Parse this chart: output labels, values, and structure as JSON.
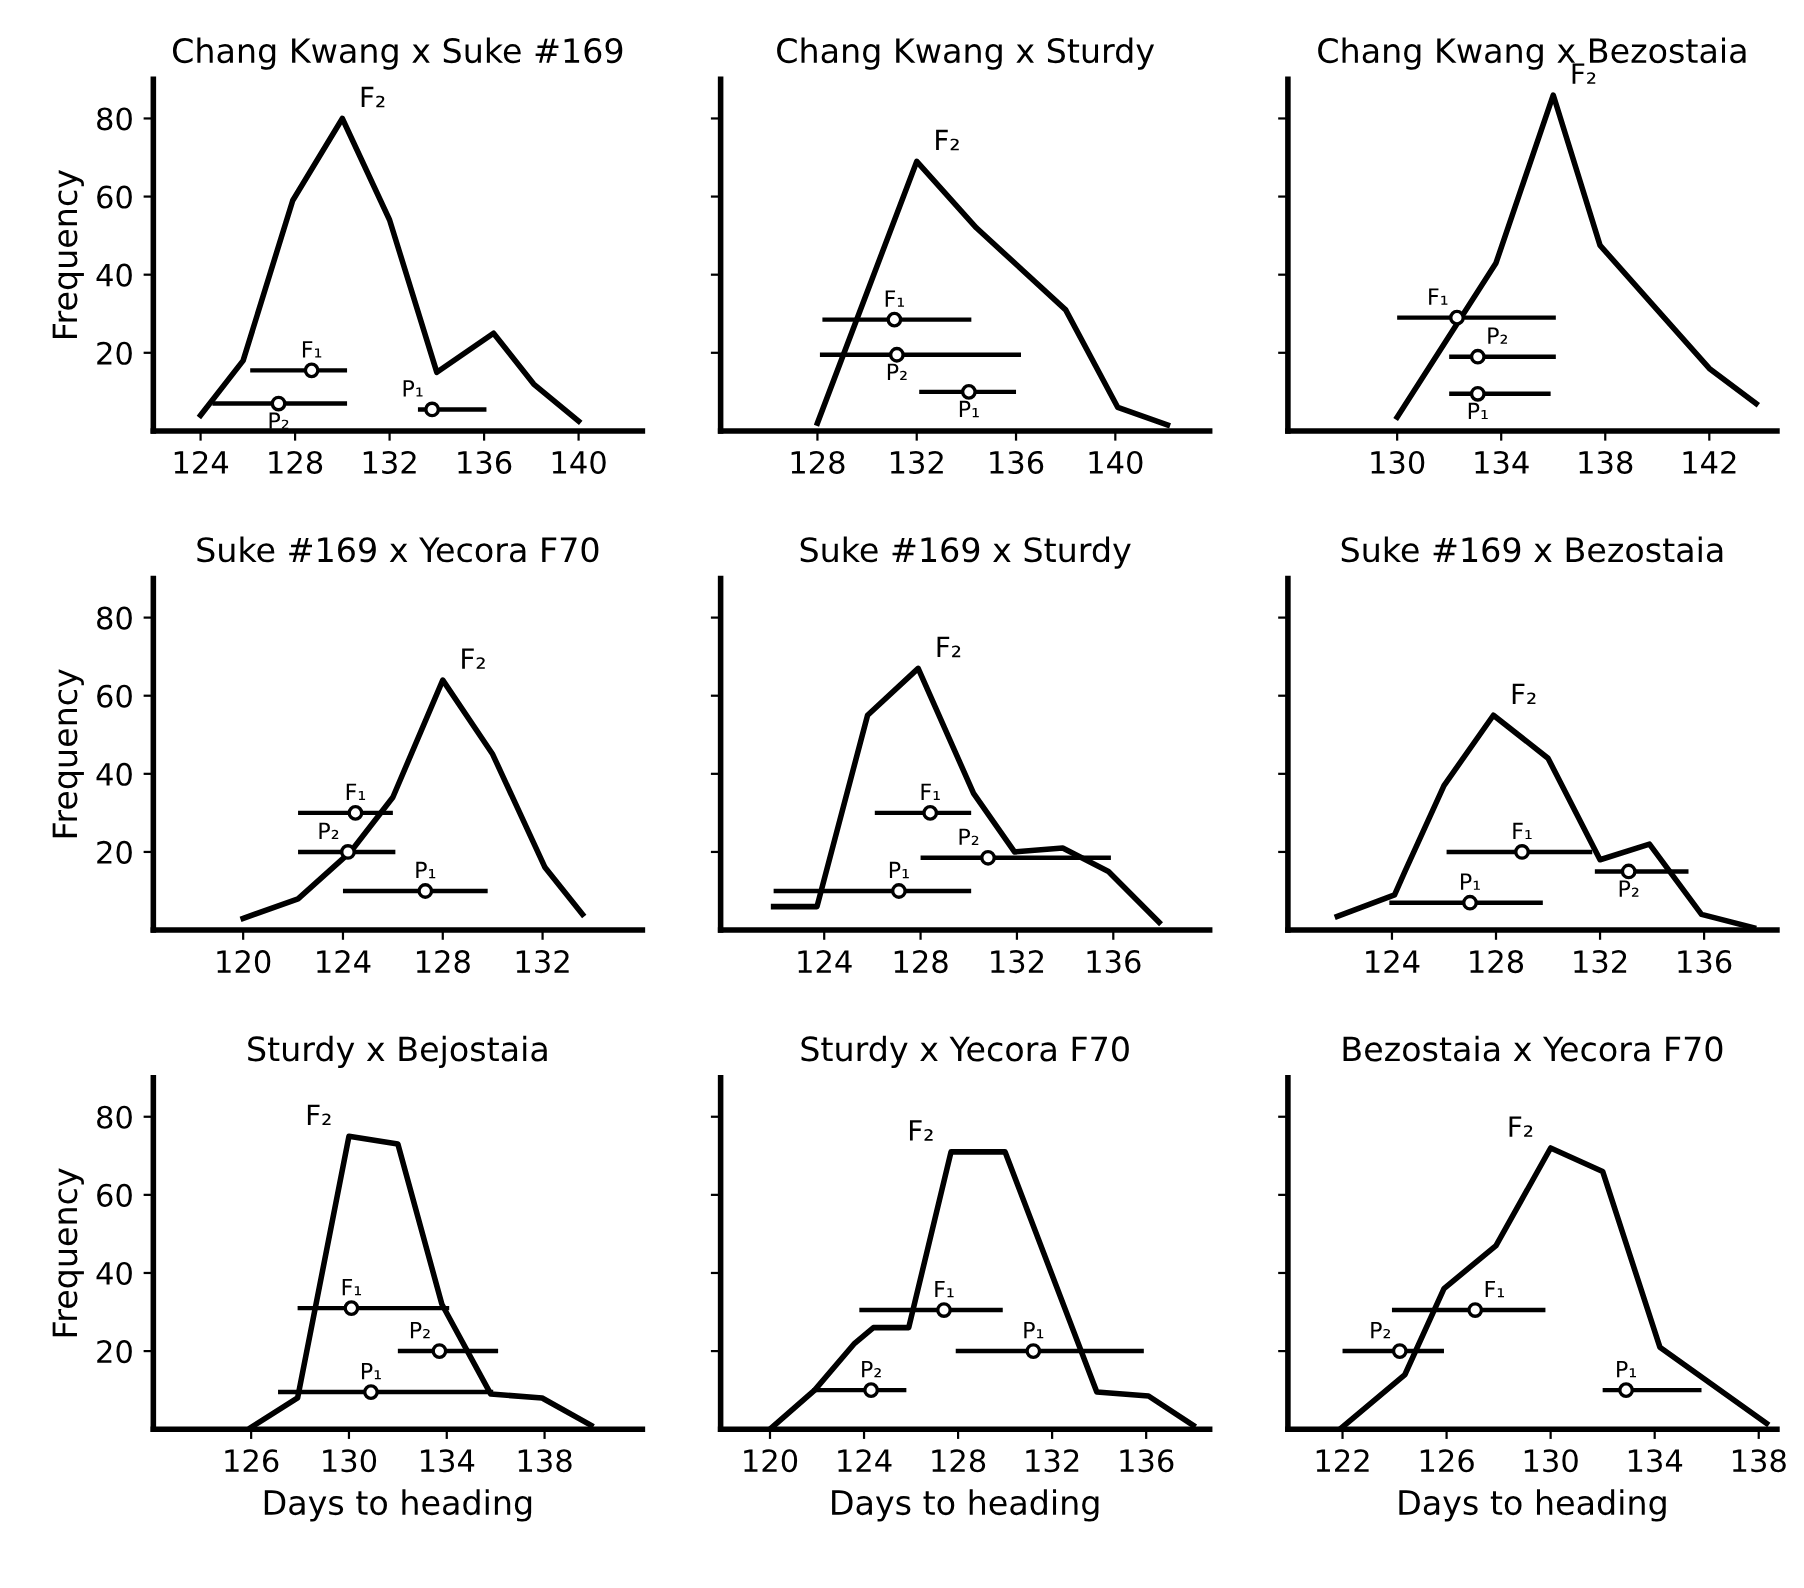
{
  "chart_data": [
    {
      "type": "line",
      "title": "Chang Kwang x Suke #169",
      "ylabel": "Frequency",
      "xlim": [
        122,
        142.7
      ],
      "xticks": [
        124,
        128,
        132,
        136,
        140
      ],
      "ylim": [
        0,
        90
      ],
      "yticks": [
        20,
        40,
        60,
        80
      ],
      "series": [
        {
          "name": "F₂",
          "color": "#000000",
          "x": [
            124,
            125.8,
            127.9,
            130,
            132,
            134,
            136.4,
            138.1,
            140
          ],
          "values": [
            4,
            18,
            59,
            80,
            54,
            15,
            25,
            12,
            2.5
          ]
        },
        {
          "name": "F₁",
          "type": "scatter",
          "marker": "circle",
          "color": "#000000",
          "x": [
            128.7
          ],
          "values": [
            15.5
          ],
          "xerrors": [
            [
              126.1,
              130.2
            ]
          ]
        },
        {
          "name": "P₂",
          "type": "scatter",
          "marker": "circle",
          "color": "#000000",
          "x": [
            127.3
          ],
          "values": [
            7
          ],
          "xerrors": [
            [
              124.5,
              130.2
            ]
          ]
        },
        {
          "name": "P₁",
          "type": "scatter",
          "marker": "circle",
          "color": "#000000",
          "x": [
            133.8
          ],
          "values": [
            5.5
          ],
          "xerrors": [
            [
              133.2,
              136.1
            ]
          ]
        }
      ]
    },
    {
      "type": "line",
      "title": "Chang Kwang x Sturdy",
      "xlim": [
        124.1,
        143.8
      ],
      "xticks": [
        128,
        132,
        136,
        140
      ],
      "ylim": [
        0,
        90
      ],
      "yticks": [
        20,
        40,
        60,
        80
      ],
      "tick_labels": "x",
      "series": [
        {
          "name": "F₂",
          "color": "#000000",
          "x": [
            128,
            132,
            134.4,
            138,
            140.1,
            142.1
          ],
          "values": [
            2,
            69,
            52,
            31,
            6,
            1.5
          ]
        },
        {
          "name": "F₁",
          "type": "scatter",
          "marker": "circle",
          "color": "#000000",
          "x": [
            131.1
          ],
          "values": [
            28.5
          ],
          "xerrors": [
            [
              128.2,
              134.2
            ]
          ]
        },
        {
          "name": "P₂",
          "type": "scatter",
          "marker": "circle",
          "color": "#000000",
          "x": [
            131.2
          ],
          "values": [
            19.5
          ],
          "xerrors": [
            [
              128.1,
              136.2
            ]
          ]
        },
        {
          "name": "P₁",
          "type": "scatter",
          "marker": "circle",
          "color": "#000000",
          "x": [
            134.1
          ],
          "values": [
            10
          ],
          "xerrors": [
            [
              132.1,
              136
            ]
          ]
        }
      ]
    },
    {
      "type": "line",
      "title": "Chang Kwang x Bezostaia",
      "xlim": [
        125.8,
        144.6
      ],
      "xticks": [
        130,
        134,
        138,
        142
      ],
      "ylim": [
        0,
        90
      ],
      "yticks": [
        20,
        40,
        60,
        80
      ],
      "tick_labels": "x",
      "series": [
        {
          "name": "F₂",
          "color": "#000000",
          "x": [
            130,
            133.8,
            136,
            137.8,
            140,
            142,
            143.8
          ],
          "values": [
            3.5,
            43,
            86,
            47.5,
            31,
            16,
            7
          ]
        },
        {
          "name": "F₁",
          "type": "scatter",
          "marker": "circle",
          "color": "#000000",
          "x": [
            132.3
          ],
          "values": [
            29
          ],
          "xerrors": [
            [
              130,
              136.1
            ]
          ]
        },
        {
          "name": "P₂",
          "type": "scatter",
          "marker": "circle",
          "color": "#000000",
          "x": [
            133.1
          ],
          "values": [
            19
          ],
          "xerrors": [
            [
              132,
              136.1
            ]
          ]
        },
        {
          "name": "P₁",
          "type": "scatter",
          "marker": "circle",
          "color": "#000000",
          "x": [
            133.1
          ],
          "values": [
            9.5
          ],
          "xerrors": [
            [
              132,
              135.9
            ]
          ]
        }
      ]
    },
    {
      "type": "line",
      "title": "Suke #169 x Yecora F70",
      "ylabel": "Frequency",
      "xlim": [
        116.4,
        136
      ],
      "xticks": [
        120,
        124,
        128,
        132
      ],
      "ylim": [
        0,
        90
      ],
      "yticks": [
        20,
        40,
        60,
        80
      ],
      "series": [
        {
          "name": "F₂",
          "color": "#000000",
          "x": [
            120,
            122.2,
            124.3,
            126,
            128,
            130,
            132.1,
            133.6
          ],
          "values": [
            3,
            8,
            20,
            34,
            64,
            45,
            16,
            4
          ]
        },
        {
          "name": "F₁",
          "type": "scatter",
          "marker": "circle",
          "color": "#000000",
          "x": [
            124.5
          ],
          "values": [
            30
          ],
          "xerrors": [
            [
              122.2,
              126
            ]
          ]
        },
        {
          "name": "P₂",
          "type": "scatter",
          "marker": "circle",
          "color": "#000000",
          "x": [
            124.2
          ],
          "values": [
            20
          ],
          "xerrors": [
            [
              122.2,
              126.1
            ]
          ]
        },
        {
          "name": "P₁",
          "type": "scatter",
          "marker": "circle",
          "color": "#000000",
          "x": [
            127.3
          ],
          "values": [
            10
          ],
          "xerrors": [
            [
              124,
              129.8
            ]
          ]
        }
      ]
    },
    {
      "type": "line",
      "title": "Suke #169 x Sturdy",
      "xlim": [
        119.7,
        140
      ],
      "xticks": [
        124,
        128,
        132,
        136
      ],
      "ylim": [
        0,
        90
      ],
      "yticks": [
        20,
        40,
        60,
        80
      ],
      "tick_labels": "x",
      "series": [
        {
          "name": "F₂",
          "color": "#000000",
          "x": [
            121.9,
            123.7,
            125.8,
            127.9,
            130.2,
            131.9,
            133.9,
            135.8,
            137.9
          ],
          "values": [
            6,
            6,
            55,
            67,
            35,
            20,
            21,
            15,
            2
          ]
        },
        {
          "name": "F₁",
          "type": "scatter",
          "marker": "circle",
          "color": "#000000",
          "x": [
            128.4
          ],
          "values": [
            30
          ],
          "xerrors": [
            [
              126.1,
              130.1
            ]
          ]
        },
        {
          "name": "P₂",
          "type": "scatter",
          "marker": "circle",
          "color": "#000000",
          "x": [
            130.8
          ],
          "values": [
            18.5
          ],
          "xerrors": [
            [
              128,
              135.9
            ]
          ]
        },
        {
          "name": "P₁",
          "type": "scatter",
          "marker": "circle",
          "color": "#000000",
          "x": [
            127.1
          ],
          "values": [
            10
          ],
          "xerrors": [
            [
              121.9,
              130.1
            ]
          ]
        }
      ]
    },
    {
      "type": "line",
      "title": "Suke #169 x Bezostaia",
      "xlim": [
        120,
        138.8
      ],
      "xticks": [
        124,
        128,
        132,
        136
      ],
      "ylim": [
        0,
        90
      ],
      "yticks": [
        20,
        40,
        60,
        80
      ],
      "tick_labels": "x",
      "series": [
        {
          "name": "F₂",
          "color": "#000000",
          "x": [
            121.9,
            124.1,
            124.5,
            126,
            127.9,
            130,
            132,
            133.9,
            135.9,
            137.9
          ],
          "values": [
            3.5,
            9,
            15,
            37,
            55,
            44,
            18,
            22,
            4,
            0.6
          ]
        },
        {
          "name": "F₁",
          "type": "scatter",
          "marker": "circle",
          "color": "#000000",
          "x": [
            129
          ],
          "values": [
            20
          ],
          "xerrors": [
            [
              126.1,
              131.7
            ]
          ]
        },
        {
          "name": "P₂",
          "type": "scatter",
          "marker": "circle",
          "color": "#000000",
          "x": [
            133.1
          ],
          "values": [
            15
          ],
          "xerrors": [
            [
              131.8,
              135.4
            ]
          ]
        },
        {
          "name": "P₁",
          "type": "scatter",
          "marker": "circle",
          "color": "#000000",
          "x": [
            127
          ],
          "values": [
            7
          ],
          "xerrors": [
            [
              123.9,
              129.8
            ]
          ]
        }
      ]
    },
    {
      "type": "line",
      "title": "Sturdy x Bejostaia",
      "ylabel": "Frequency",
      "xlabel": "Days to heading",
      "xlim": [
        122,
        142
      ],
      "xticks": [
        126,
        130,
        134,
        138
      ],
      "ylim": [
        0,
        90
      ],
      "yticks": [
        20,
        40,
        60,
        80
      ],
      "series": [
        {
          "name": "F₂",
          "color": "#000000",
          "x": [
            126,
            127.9,
            130,
            132,
            133.8,
            135.8,
            137.9,
            139.9
          ],
          "values": [
            0.5,
            8,
            75,
            73,
            32,
            9,
            8,
            1
          ]
        },
        {
          "name": "F₁",
          "type": "scatter",
          "marker": "circle",
          "color": "#000000",
          "x": [
            130.1
          ],
          "values": [
            31
          ],
          "xerrors": [
            [
              127.9,
              134.1
            ]
          ]
        },
        {
          "name": "P₂",
          "type": "scatter",
          "marker": "circle",
          "color": "#000000",
          "x": [
            133.7
          ],
          "values": [
            20
          ],
          "xerrors": [
            [
              132,
              136.1
            ]
          ]
        },
        {
          "name": "P₁",
          "type": "scatter",
          "marker": "circle",
          "color": "#000000",
          "x": [
            130.9
          ],
          "values": [
            9.5
          ],
          "xerrors": [
            [
              127.1,
              135.9
            ]
          ]
        }
      ]
    },
    {
      "type": "line",
      "title": "Sturdy x Yecora F70",
      "xlabel": "Days to heading",
      "xlim": [
        117.9,
        138.7
      ],
      "xticks": [
        120,
        124,
        128,
        132,
        136
      ],
      "ylim": [
        0,
        90
      ],
      "yticks": [
        20,
        40,
        60,
        80
      ],
      "tick_labels": "x",
      "series": [
        {
          "name": "F₂",
          "color": "#000000",
          "x": [
            120,
            121.9,
            123.6,
            124.4,
            125.9,
            127.7,
            130,
            133.9,
            136.1,
            138
          ],
          "values": [
            0,
            10,
            22,
            26,
            26,
            71,
            71,
            9.5,
            8.5,
            1
          ]
        },
        {
          "name": "F₁",
          "type": "scatter",
          "marker": "circle",
          "color": "#000000",
          "x": [
            127.4
          ],
          "values": [
            30.5
          ],
          "xerrors": [
            [
              123.8,
              129.9
            ]
          ]
        },
        {
          "name": "P₂",
          "type": "scatter",
          "marker": "circle",
          "color": "#000000",
          "x": [
            124.3
          ],
          "values": [
            10
          ],
          "xerrors": [
            [
              121.8,
              125.8
            ]
          ]
        },
        {
          "name": "P₁",
          "type": "scatter",
          "marker": "circle",
          "color": "#000000",
          "x": [
            131.2
          ],
          "values": [
            20
          ],
          "xerrors": [
            [
              127.9,
              135.9
            ]
          ]
        }
      ]
    },
    {
      "type": "line",
      "title": "Bezostaia x Yecora F70",
      "xlabel": "Days to heading",
      "xlim": [
        119.9,
        138.7
      ],
      "xticks": [
        122,
        126,
        130,
        134,
        138
      ],
      "ylim": [
        0,
        90
      ],
      "yticks": [
        20,
        40,
        60,
        80
      ],
      "tick_labels": "x",
      "series": [
        {
          "name": "F₂",
          "color": "#000000",
          "x": [
            121.9,
            124.4,
            125.9,
            127.9,
            130,
            132,
            134.2,
            138.3
          ],
          "values": [
            0,
            14,
            36,
            47,
            72,
            66,
            21,
            1.5
          ]
        },
        {
          "name": "F₁",
          "type": "scatter",
          "marker": "circle",
          "color": "#000000",
          "x": [
            127.1
          ],
          "values": [
            30.5
          ],
          "xerrors": [
            [
              123.9,
              129.8
            ]
          ]
        },
        {
          "name": "P₂",
          "type": "scatter",
          "marker": "circle",
          "color": "#000000",
          "x": [
            124.2
          ],
          "values": [
            20
          ],
          "xerrors": [
            [
              122,
              125.9
            ]
          ]
        },
        {
          "name": "P₁",
          "type": "scatter",
          "marker": "circle",
          "color": "#000000",
          "x": [
            132.9
          ],
          "values": [
            10
          ],
          "xerrors": [
            [
              132,
              135.8
            ]
          ]
        }
      ]
    }
  ]
}
